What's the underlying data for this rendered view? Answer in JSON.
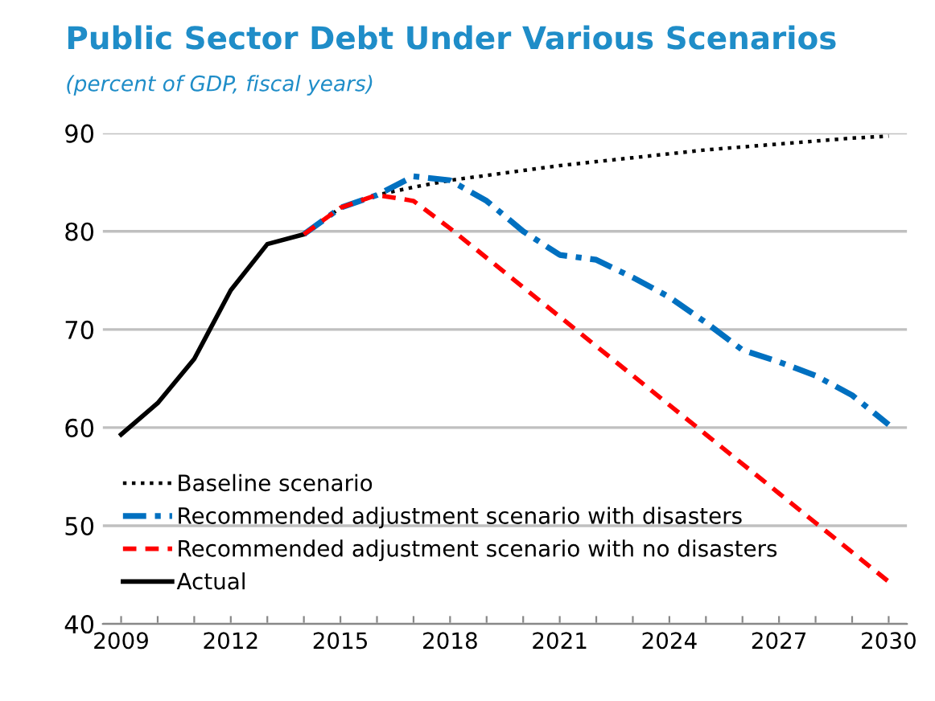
{
  "chart_data": {
    "type": "line",
    "title": "Public Sector Debt Under Various Scenarios",
    "subtitle": "(percent of GDP, fiscal years)",
    "xlim": [
      2008.5,
      2030.5
    ],
    "xticks": [
      2009,
      {
        "value": 2010,
        "label": null
      },
      {
        "value": 2011,
        "label": null
      },
      2012,
      {
        "value": 2013,
        "label": null
      },
      {
        "value": 2014,
        "label": null
      },
      2015,
      {
        "value": 2016,
        "label": null
      },
      {
        "value": 2017,
        "label": null
      },
      2018,
      {
        "value": 2019,
        "label": null
      },
      {
        "value": 2020,
        "label": null
      },
      2021,
      {
        "value": 2022,
        "label": null
      },
      {
        "value": 2023,
        "label": null
      },
      2024,
      {
        "value": 2025,
        "label": null
      },
      {
        "value": 2026,
        "label": null
      },
      2027,
      {
        "value": 2028,
        "label": null
      },
      {
        "value": 2029,
        "label": null
      },
      2030
    ],
    "ylim": [
      40,
      90
    ],
    "yticks": [
      40,
      50,
      60,
      70,
      80,
      90
    ],
    "grid": "y",
    "legend": "bottom left",
    "marker": "none",
    "series": [
      {
        "name": "Baseline scenario",
        "color": "#000000",
        "line_style": "dotted",
        "x": [
          2014,
          2015,
          2016,
          2017,
          2018,
          2019,
          2020,
          2021,
          2022,
          2023,
          2024,
          2025,
          2026,
          2027,
          2028,
          2029,
          2030
        ],
        "values": [
          79.7,
          82.4,
          83.7,
          84.5,
          85.2,
          85.7,
          86.2,
          86.7,
          87.1,
          87.5,
          87.9,
          88.3,
          88.6,
          88.9,
          89.2,
          89.5,
          89.7
        ]
      },
      {
        "name": "Recommended adjustment scenario with disasters",
        "color": "#0070c0",
        "line_style": "dashdot",
        "x": [
          2014,
          2015,
          2016,
          2017,
          2018,
          2019,
          2020,
          2021,
          2022,
          2023,
          2024,
          2025,
          2026,
          2027,
          2028,
          2029,
          2030
        ],
        "values": [
          79.7,
          82.4,
          83.7,
          85.6,
          85.2,
          83.1,
          80.0,
          77.6,
          77.1,
          75.3,
          73.3,
          70.7,
          67.9,
          66.7,
          65.3,
          63.3,
          60.3
        ]
      },
      {
        "name": "Recommended adjustment scenario with no disasters",
        "color": "#ff0000",
        "line_style": "dashed",
        "x": [
          2014,
          2015,
          2016,
          2017,
          2018,
          2019,
          2020,
          2021,
          2022,
          2023,
          2024,
          2025,
          2026,
          2027,
          2028,
          2029,
          2030
        ],
        "values": [
          79.7,
          82.4,
          83.7,
          83.1,
          80.3,
          77.3,
          74.3,
          71.3,
          68.3,
          65.3,
          62.3,
          59.3,
          56.3,
          53.3,
          50.3,
          47.3,
          44.3
        ]
      },
      {
        "name": "Actual",
        "color": "#000000",
        "line_style": "solid",
        "x": [
          2009,
          2010,
          2011,
          2012,
          2013,
          2014
        ],
        "values": [
          59.3,
          62.5,
          67.0,
          74.0,
          78.7,
          79.7
        ]
      }
    ]
  }
}
